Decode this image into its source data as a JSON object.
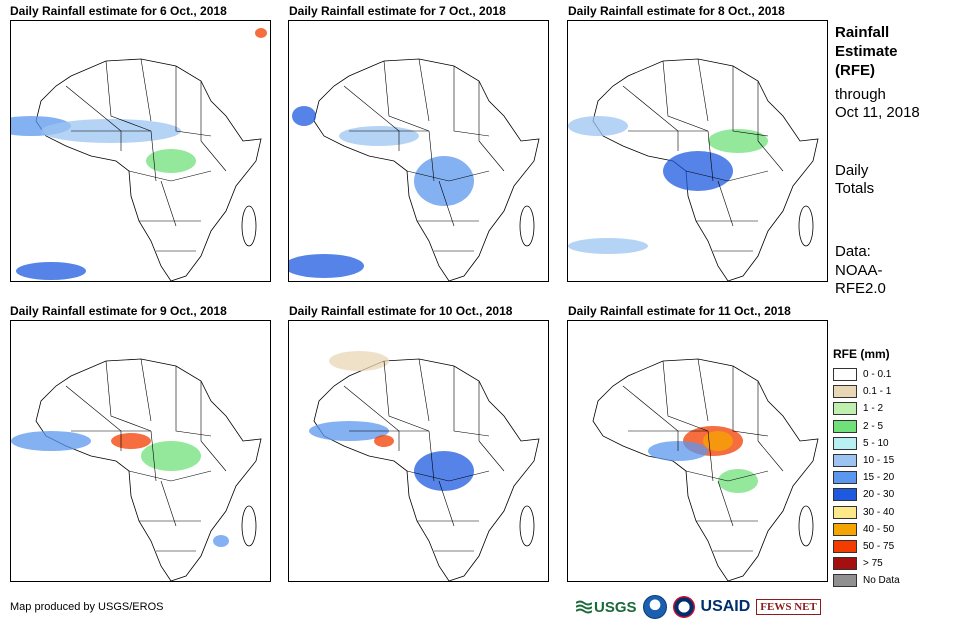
{
  "panels": [
    {
      "title": "Daily Rainfall estimate for 6 Oct., 2018",
      "id": "p1"
    },
    {
      "title": "Daily Rainfall estimate for 7 Oct., 2018",
      "id": "p2"
    },
    {
      "title": "Daily Rainfall estimate for 8 Oct., 2018",
      "id": "p3"
    },
    {
      "title": "Daily Rainfall estimate for 9 Oct., 2018",
      "id": "p4"
    },
    {
      "title": "Daily Rainfall estimate for 10 Oct., 2018",
      "id": "p5"
    },
    {
      "title": "Daily Rainfall estimate for 11 Oct., 2018",
      "id": "p6"
    }
  ],
  "sidebar": {
    "heading_line1": "Rainfall",
    "heading_line2": "Estimate",
    "heading_line3": "(RFE)",
    "through_line1": "through",
    "through_line2": "Oct 11, 2018",
    "daily_line1": "Daily",
    "daily_line2": "Totals",
    "data_line1": "Data:",
    "data_line2": "NOAA-",
    "data_line3": "RFE2.0"
  },
  "legend": {
    "title": "RFE (mm)",
    "items": [
      {
        "label": "0 - 0.1",
        "color": "#ffffff"
      },
      {
        "label": "0.1 - 1",
        "color": "#e8d7b4"
      },
      {
        "label": "1 - 2",
        "color": "#bff0b0"
      },
      {
        "label": "2 - 5",
        "color": "#6fe07a"
      },
      {
        "label": "5 - 10",
        "color": "#b8f0f4"
      },
      {
        "label": "10 - 15",
        "color": "#9cc4f2"
      },
      {
        "label": "15 - 20",
        "color": "#5b97ee"
      },
      {
        "label": "20 - 30",
        "color": "#1d5ae0"
      },
      {
        "label": "30 - 40",
        "color": "#fde98a"
      },
      {
        "label": "40 - 50",
        "color": "#f5a500"
      },
      {
        "label": "50 - 75",
        "color": "#f33c00"
      },
      {
        "label": "> 75",
        "color": "#a50f0f"
      },
      {
        "label": "No Data",
        "color": "#909090"
      }
    ]
  },
  "footer": {
    "credit": "Map produced by USGS/EROS",
    "logo_usgs": "USGS",
    "logo_usaid": "USAID",
    "logo_fews": "FEWS NET"
  }
}
